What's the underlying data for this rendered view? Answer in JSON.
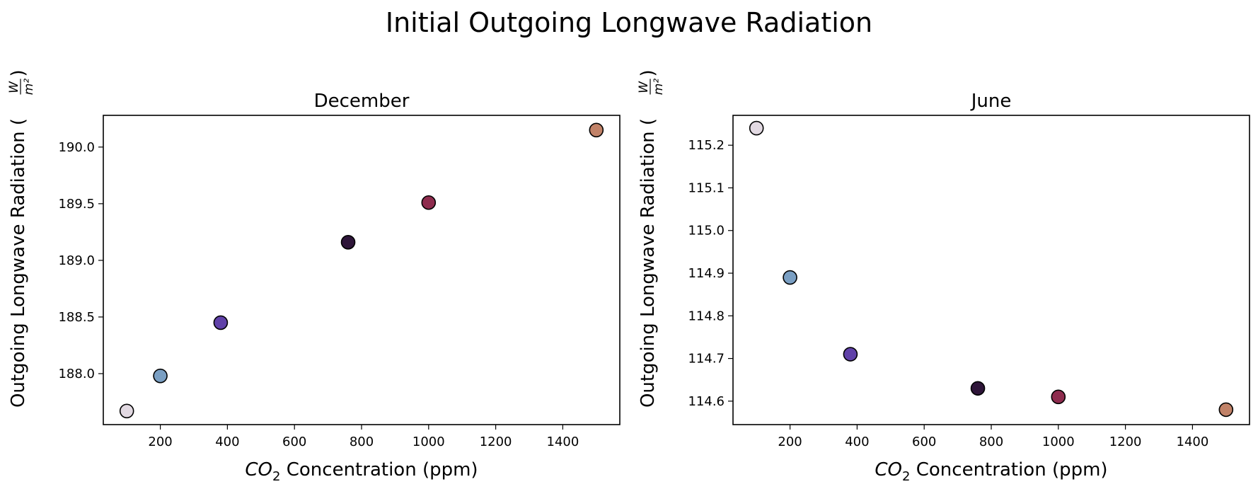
{
  "figure": {
    "title": "Initial Outgoing Longwave Radiation"
  },
  "chart_data": [
    {
      "type": "scatter",
      "title": "December",
      "xlabel_italic": "CO",
      "xlabel_sub": "2",
      "xlabel_rest": " Concentration (ppm)",
      "ylabel": "Outgoing Longwave Radiation (",
      "ylabel_unit_num": "W",
      "ylabel_unit_den": "m²",
      "ylabel_close": ")",
      "xlim": [
        30,
        1570
      ],
      "ylim": [
        187.55,
        190.28
      ],
      "xticks": [
        200,
        400,
        600,
        800,
        1000,
        1200,
        1400
      ],
      "yticks": [
        188.0,
        188.5,
        189.0,
        189.5,
        190.0
      ],
      "ytick_decimals": 1,
      "x": [
        100,
        200,
        380,
        760,
        1000,
        1500
      ],
      "y": [
        187.67,
        187.98,
        188.45,
        189.16,
        189.51,
        190.15
      ],
      "colors": [
        "#e2d9e2",
        "#7a9fc3",
        "#6041a8",
        "#2e1539",
        "#8e2c4e",
        "#c18268"
      ]
    },
    {
      "type": "scatter",
      "title": "June",
      "xlabel_italic": "CO",
      "xlabel_sub": "2",
      "xlabel_rest": " Concentration (ppm)",
      "ylabel": "Outgoing Longwave Radiation (",
      "ylabel_unit_num": "W",
      "ylabel_unit_den": "m²",
      "ylabel_close": ")",
      "xlim": [
        30,
        1570
      ],
      "ylim": [
        114.545,
        115.27
      ],
      "xticks": [
        200,
        400,
        600,
        800,
        1000,
        1200,
        1400
      ],
      "yticks": [
        114.6,
        114.7,
        114.8,
        114.9,
        115.0,
        115.1,
        115.2
      ],
      "ytick_decimals": 1,
      "x": [
        100,
        200,
        380,
        760,
        1000,
        1500
      ],
      "y": [
        115.24,
        114.89,
        114.71,
        114.63,
        114.61,
        114.58
      ],
      "colors": [
        "#e2d9e2",
        "#7a9fc3",
        "#6041a8",
        "#2e1539",
        "#8e2c4e",
        "#c18268"
      ]
    }
  ]
}
